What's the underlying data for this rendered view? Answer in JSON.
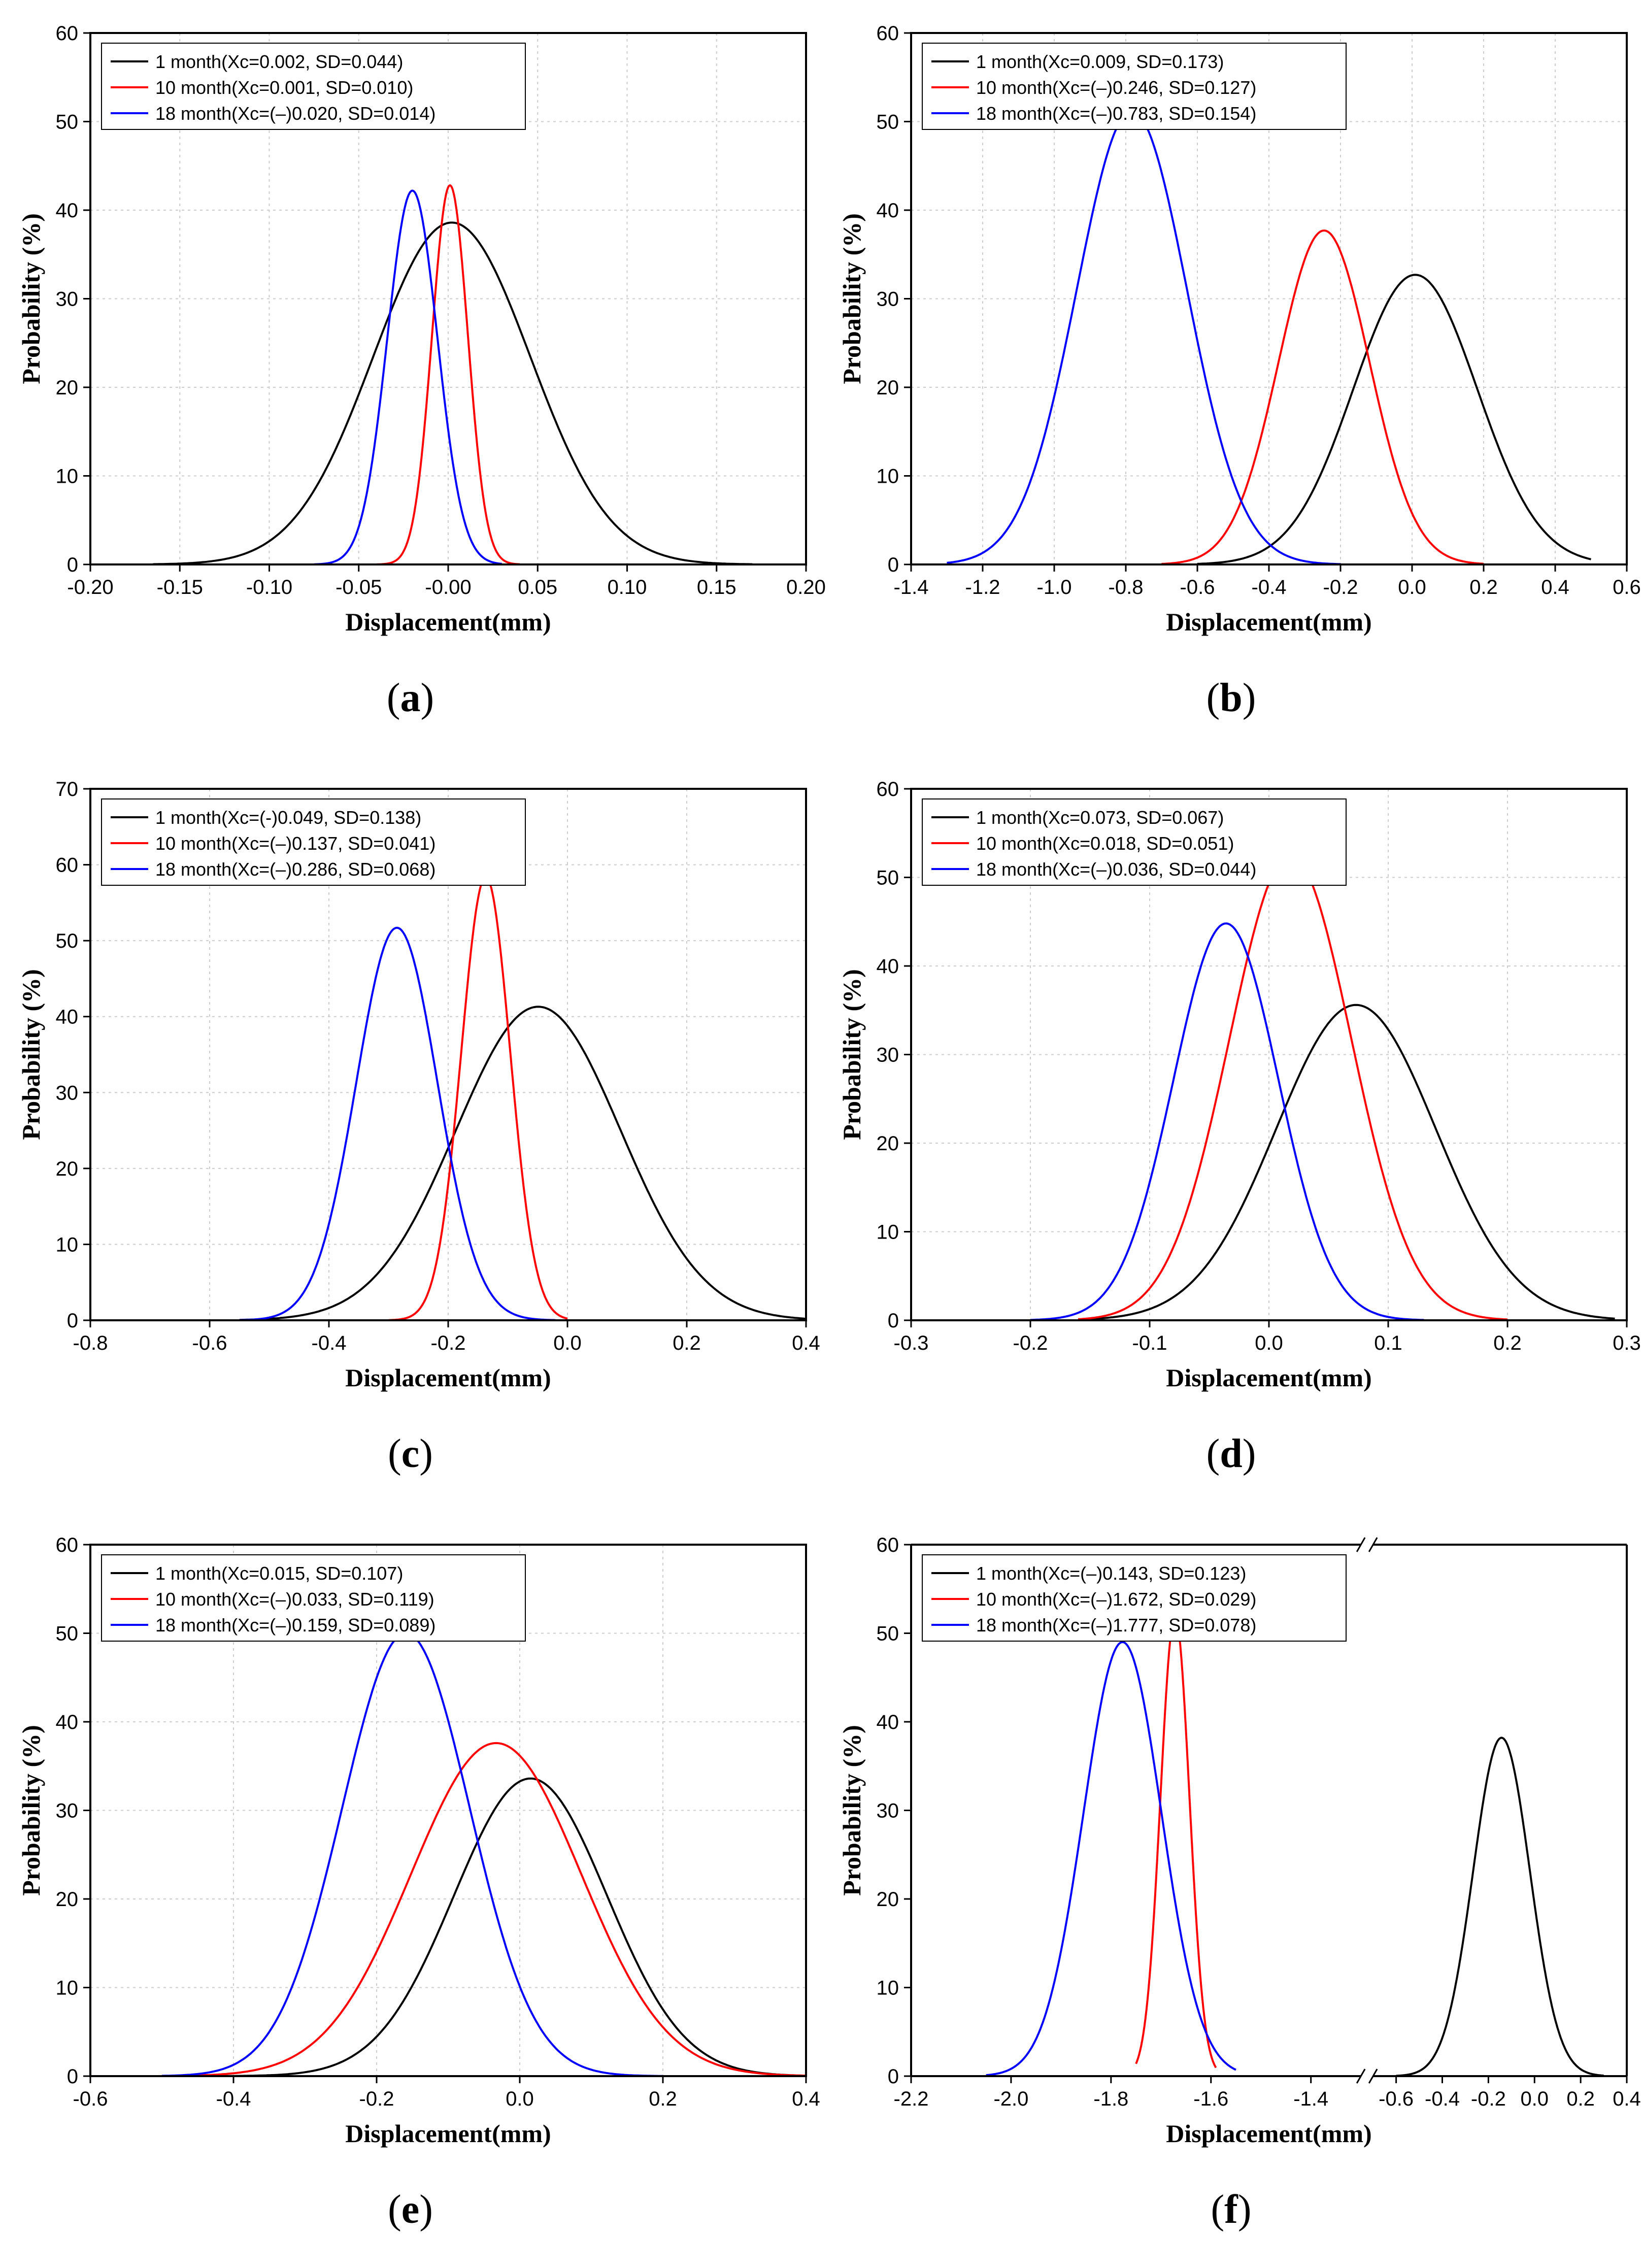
{
  "figure": {
    "panels": [
      {
        "caption_letter": "a"
      },
      {
        "caption_letter": "b"
      },
      {
        "caption_letter": "c"
      },
      {
        "caption_letter": "d"
      },
      {
        "caption_letter": "e"
      },
      {
        "caption_letter": "f"
      }
    ]
  },
  "colors": {
    "1 month": "#000000",
    "10 month": "#ff0000",
    "18 month": "#0000ff"
  },
  "chart_data": [
    {
      "type": "line",
      "id": "a",
      "xlabel": "Displacement(mm)",
      "ylabel": "Probability (%)",
      "xlim": [
        -0.2,
        0.2
      ],
      "ylim": [
        0,
        60
      ],
      "xticks": [
        "-0.20",
        "-0.15",
        "-0.10",
        "-0.05",
        "-0.00",
        "0.05",
        "0.10",
        "0.15",
        "0.20"
      ],
      "xtick_values": [
        -0.2,
        -0.15,
        -0.1,
        -0.05,
        0,
        0.05,
        0.1,
        0.15,
        0.2
      ],
      "yticks": [
        0,
        10,
        20,
        30,
        40,
        50,
        60
      ],
      "grid": true,
      "legend_position": "top-left",
      "series": [
        {
          "name": "1 month",
          "label": "1 month(Xc=0.002, SD=0.044)",
          "mean": 0.002,
          "sd": 0.044,
          "peak": 38.6,
          "color": "#000000",
          "range": [
            -0.165,
            0.17
          ]
        },
        {
          "name": "10 month",
          "label": "10 month(Xc=0.001, SD=0.010)",
          "mean": 0.001,
          "sd": 0.01,
          "peak": 42.8,
          "color": "#ff0000",
          "range": [
            -0.04,
            0.04
          ]
        },
        {
          "name": "18 month",
          "label": "18 month(Xc=(–)0.020, SD=0.014)",
          "mean": -0.02,
          "sd": 0.014,
          "peak": 42.2,
          "color": "#0000ff",
          "range": [
            -0.075,
            0.03
          ]
        }
      ]
    },
    {
      "type": "line",
      "id": "b",
      "xlabel": "Displacement(mm)",
      "ylabel": "Probability (%)",
      "xlim": [
        -1.4,
        0.6
      ],
      "ylim": [
        0,
        60
      ],
      "xticks": [
        "-1.4",
        "-1.2",
        "-1.0",
        "-0.8",
        "-0.6",
        "-0.4",
        "-0.2",
        "0.0",
        "0.2",
        "0.4",
        "0.6"
      ],
      "xtick_values": [
        -1.4,
        -1.2,
        -1.0,
        -0.8,
        -0.6,
        -0.4,
        -0.2,
        0.0,
        0.2,
        0.4,
        0.6
      ],
      "yticks": [
        0,
        10,
        20,
        30,
        40,
        50,
        60
      ],
      "grid": true,
      "legend_position": "top-left",
      "series": [
        {
          "name": "1 month",
          "label": "1 month(Xc=0.009, SD=0.173)",
          "mean": 0.009,
          "sd": 0.173,
          "peak": 32.7,
          "color": "#000000",
          "range": [
            -0.6,
            0.5
          ]
        },
        {
          "name": "10 month",
          "label": "10 month(Xc=(–)0.246, SD=0.127)",
          "mean": -0.246,
          "sd": 0.127,
          "peak": 37.7,
          "color": "#ff0000",
          "range": [
            -0.7,
            0.2
          ]
        },
        {
          "name": "18 month",
          "label": "18 month(Xc=(–)0.783, SD=0.154)",
          "mean": -0.783,
          "sd": 0.154,
          "peak": 51.2,
          "color": "#0000ff",
          "range": [
            -1.3,
            -0.2
          ]
        }
      ]
    },
    {
      "type": "line",
      "id": "c",
      "xlabel": "Displacement(mm)",
      "ylabel": "Probability (%)",
      "xlim": [
        -0.8,
        0.4
      ],
      "ylim": [
        0,
        70
      ],
      "xticks": [
        "-0.8",
        "-0.6",
        "-0.4",
        "-0.2",
        "0.0",
        "0.2",
        "0.4"
      ],
      "xtick_values": [
        -0.8,
        -0.6,
        -0.4,
        -0.2,
        0.0,
        0.2,
        0.4
      ],
      "yticks": [
        0,
        10,
        20,
        30,
        40,
        50,
        60,
        70
      ],
      "grid": true,
      "legend_position": "top-left",
      "series": [
        {
          "name": "1 month",
          "label": "1 month(Xc=(-)0.049, SD=0.138)",
          "mean": -0.049,
          "sd": 0.138,
          "peak": 41.3,
          "color": "#000000",
          "range": [
            -0.55,
            0.4
          ]
        },
        {
          "name": "10 month",
          "label": "10 month(Xc=(–)0.137, SD=0.041)",
          "mean": -0.137,
          "sd": 0.041,
          "peak": 58.4,
          "color": "#ff0000",
          "range": [
            -0.3,
            0.0
          ]
        },
        {
          "name": "18 month",
          "label": "18 month(Xc=(–)0.286, SD=0.068)",
          "mean": -0.286,
          "sd": 0.068,
          "peak": 51.7,
          "color": "#0000ff",
          "range": [
            -0.55,
            -0.02
          ]
        }
      ]
    },
    {
      "type": "line",
      "id": "d",
      "xlabel": "Displacement(mm)",
      "ylabel": "Probability (%)",
      "xlim": [
        -0.3,
        0.3
      ],
      "ylim": [
        0,
        60
      ],
      "xticks": [
        "-0.3",
        "-0.2",
        "-0.1",
        "0.0",
        "0.1",
        "0.2",
        "0.3"
      ],
      "xtick_values": [
        -0.3,
        -0.2,
        -0.1,
        0.0,
        0.1,
        0.2,
        0.3
      ],
      "yticks": [
        0,
        10,
        20,
        30,
        40,
        50,
        60
      ],
      "grid": true,
      "legend_position": "top-left",
      "series": [
        {
          "name": "1 month",
          "label": "1 month(Xc=0.073, SD=0.067)",
          "mean": 0.073,
          "sd": 0.067,
          "peak": 35.6,
          "color": "#000000",
          "range": [
            -0.15,
            0.29
          ]
        },
        {
          "name": "10 month",
          "label": "10 month(Xc=0.018, SD=0.051)",
          "mean": 0.018,
          "sd": 0.051,
          "peak": 52.5,
          "color": "#ff0000",
          "range": [
            -0.16,
            0.2
          ]
        },
        {
          "name": "18 month",
          "label": "18 month(Xc=(–)0.036, SD=0.044)",
          "mean": -0.036,
          "sd": 0.044,
          "peak": 44.8,
          "color": "#0000ff",
          "range": [
            -0.2,
            0.13
          ]
        }
      ]
    },
    {
      "type": "line",
      "id": "e",
      "xlabel": "Displacement(mm)",
      "ylabel": "Probability (%)",
      "xlim": [
        -0.6,
        0.4
      ],
      "ylim": [
        0,
        60
      ],
      "xticks": [
        "-0.6",
        "-0.4",
        "-0.2",
        "0.0",
        "0.2",
        "0.4"
      ],
      "xtick_values": [
        -0.6,
        -0.4,
        -0.2,
        0.0,
        0.2,
        0.4
      ],
      "yticks": [
        0,
        10,
        20,
        30,
        40,
        50,
        60
      ],
      "grid": true,
      "legend_position": "top-left",
      "series": [
        {
          "name": "1 month",
          "label": "1 month(Xc=0.015, SD=0.107)",
          "mean": 0.015,
          "sd": 0.107,
          "peak": 33.6,
          "color": "#000000",
          "range": [
            -0.42,
            0.4
          ]
        },
        {
          "name": "10 month",
          "label": "10 month(Xc=(–)0.033, SD=0.119)",
          "mean": -0.033,
          "sd": 0.119,
          "peak": 37.6,
          "color": "#ff0000",
          "range": [
            -0.5,
            0.4
          ]
        },
        {
          "name": "18 month",
          "label": "18 month(Xc=(–)0.159, SD=0.089)",
          "mean": -0.159,
          "sd": 0.089,
          "peak": 50.0,
          "color": "#0000ff",
          "range": [
            -0.5,
            0.2
          ]
        }
      ]
    },
    {
      "type": "line",
      "id": "f",
      "xlabel": "Displacement(mm)",
      "ylabel": "Probability (%)",
      "broken_axis": {
        "left": [
          -2.2,
          -1.3
        ],
        "right": [
          -0.7,
          0.4
        ]
      },
      "ylim": [
        0,
        60
      ],
      "xticks": [
        "-2.2",
        "-2.0",
        "-1.8",
        "-1.6",
        "-1.4",
        "-0.6",
        "-0.4",
        "-0.2",
        "0.0",
        "0.2",
        "0.4"
      ],
      "xtick_values": [
        -2.2,
        -2.0,
        -1.8,
        -1.6,
        -1.4,
        -0.6,
        -0.4,
        -0.2,
        0.0,
        0.2,
        0.4
      ],
      "yticks": [
        0,
        10,
        20,
        30,
        40,
        50,
        60
      ],
      "grid": false,
      "legend_position": "top-left",
      "series": [
        {
          "name": "1 month",
          "label": "1 month(Xc=(–)0.143, SD=0.123)",
          "mean": -0.143,
          "sd": 0.123,
          "peak": 38.2,
          "color": "#000000",
          "range": [
            -0.6,
            0.3
          ]
        },
        {
          "name": "10 month",
          "label": "10 month(Xc=(–)1.672, SD=0.029)",
          "mean": -1.672,
          "sd": 0.029,
          "peak": 52.0,
          "color": "#ff0000",
          "range": [
            -1.75,
            -1.59
          ]
        },
        {
          "name": "18 month",
          "label": "18 month(Xc=(–)1.777, SD=0.078)",
          "mean": -1.777,
          "sd": 0.078,
          "peak": 49.0,
          "color": "#0000ff",
          "range": [
            -2.05,
            -1.55
          ]
        }
      ]
    }
  ]
}
